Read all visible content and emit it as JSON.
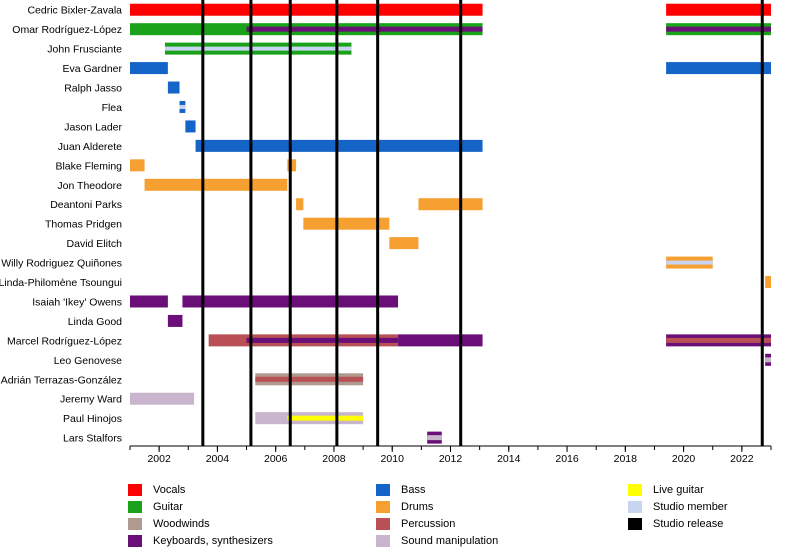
{
  "chart_data": {
    "type": "timeline",
    "title": "",
    "xlabel": "",
    "ylabel": "",
    "xlim": [
      2001.0,
      2023.0
    ],
    "x_ticks": [
      2002,
      2004,
      2006,
      2008,
      2010,
      2012,
      2014,
      2016,
      2018,
      2020,
      2022
    ],
    "roles": {
      "vocals": {
        "label": "Vocals",
        "color": "#ff0000"
      },
      "guitar": {
        "label": "Guitar",
        "color": "#1aa31a"
      },
      "woodwinds": {
        "label": "Woodwinds",
        "color": "#b09a90"
      },
      "keyboards": {
        "label": "Keyboards, synthesizers",
        "color": "#6b0f78"
      },
      "bass": {
        "label": "Bass",
        "color": "#1565c8"
      },
      "drums": {
        "label": "Drums",
        "color": "#f5a030"
      },
      "percussion": {
        "label": "Percussion",
        "color": "#b85055"
      },
      "sound": {
        "label": "Sound manipulation",
        "color": "#c8b4cc"
      },
      "live_guitar": {
        "label": "Live guitar",
        "color": "#ffff00"
      },
      "studio_member": {
        "label": "Studio member",
        "color": "#c8d4f0"
      },
      "studio_release": {
        "label": "Studio release",
        "color": "#000000"
      }
    },
    "members": [
      {
        "name": "Cedric Bixler-Zavala",
        "bars": [
          {
            "role": "vocals",
            "start": 2001.0,
            "end": 2013.1
          },
          {
            "role": "vocals",
            "start": 2019.4,
            "end": 2023.0
          }
        ]
      },
      {
        "name": "Omar Rodríguez-López",
        "bars": [
          {
            "role": "guitar",
            "start": 2001.0,
            "end": 2013.1
          },
          {
            "role": "keyboards",
            "start": 2005.0,
            "end": 2013.1,
            "overlay": true
          },
          {
            "role": "guitar",
            "start": 2019.4,
            "end": 2023.0
          },
          {
            "role": "keyboards",
            "start": 2019.4,
            "end": 2023.0,
            "overlay": true
          }
        ]
      },
      {
        "name": "John Frusciante",
        "bars": [
          {
            "role": "guitar",
            "start": 2002.2,
            "end": 2008.6,
            "studio": true
          }
        ]
      },
      {
        "name": "Eva Gardner",
        "bars": [
          {
            "role": "bass",
            "start": 2001.0,
            "end": 2002.3
          },
          {
            "role": "bass",
            "start": 2019.4,
            "end": 2023.0
          }
        ]
      },
      {
        "name": "Ralph Jasso",
        "bars": [
          {
            "role": "bass",
            "start": 2002.3,
            "end": 2002.7
          }
        ]
      },
      {
        "name": "Flea",
        "bars": [
          {
            "role": "bass",
            "start": 2002.7,
            "end": 2002.9,
            "studio": true
          }
        ]
      },
      {
        "name": "Jason Lader",
        "bars": [
          {
            "role": "bass",
            "start": 2002.9,
            "end": 2003.25
          }
        ]
      },
      {
        "name": "Juan Alderete",
        "bars": [
          {
            "role": "bass",
            "start": 2003.25,
            "end": 2013.1
          }
        ]
      },
      {
        "name": "Blake Fleming",
        "bars": [
          {
            "role": "drums",
            "start": 2001.0,
            "end": 2001.5
          },
          {
            "role": "drums",
            "start": 2006.4,
            "end": 2006.7
          }
        ]
      },
      {
        "name": "Jon Theodore",
        "bars": [
          {
            "role": "drums",
            "start": 2001.5,
            "end": 2006.4
          }
        ]
      },
      {
        "name": "Deantoni Parks",
        "bars": [
          {
            "role": "drums",
            "start": 2006.7,
            "end": 2006.95
          },
          {
            "role": "drums",
            "start": 2010.9,
            "end": 2013.1
          }
        ]
      },
      {
        "name": "Thomas Pridgen",
        "bars": [
          {
            "role": "drums",
            "start": 2006.95,
            "end": 2009.9
          }
        ]
      },
      {
        "name": "David Elitch",
        "bars": [
          {
            "role": "drums",
            "start": 2009.9,
            "end": 2010.9
          }
        ]
      },
      {
        "name": "Willy Rodriguez Quiñones",
        "bars": [
          {
            "role": "drums",
            "start": 2019.4,
            "end": 2021.0,
            "studio": true
          }
        ]
      },
      {
        "name": "Linda-Philomène Tsoungui",
        "bars": [
          {
            "role": "drums",
            "start": 2022.8,
            "end": 2023.0
          }
        ]
      },
      {
        "name": "Isaiah 'Ikey' Owens",
        "bars": [
          {
            "role": "keyboards",
            "start": 2001.0,
            "end": 2002.3
          },
          {
            "role": "keyboards",
            "start": 2002.8,
            "end": 2010.2
          }
        ]
      },
      {
        "name": "Linda Good",
        "bars": [
          {
            "role": "keyboards",
            "start": 2002.3,
            "end": 2002.8
          }
        ]
      },
      {
        "name": "Marcel Rodríguez-López",
        "bars": [
          {
            "role": "percussion",
            "start": 2003.7,
            "end": 2010.2
          },
          {
            "role": "keyboards",
            "start": 2005.0,
            "end": 2010.2,
            "overlay": true
          },
          {
            "role": "keyboards",
            "start": 2010.2,
            "end": 2013.1
          },
          {
            "role": "keyboards",
            "start": 2019.4,
            "end": 2023.0
          },
          {
            "role": "percussion",
            "start": 2019.4,
            "end": 2023.0,
            "overlay": true
          }
        ]
      },
      {
        "name": "Leo Genovese",
        "bars": [
          {
            "role": "keyboards",
            "start": 2022.8,
            "end": 2023.0
          },
          {
            "role": "sound",
            "start": 2022.8,
            "end": 2023.0,
            "overlay": true
          }
        ]
      },
      {
        "name": "Adrián Terrazas-González",
        "bars": [
          {
            "role": "woodwinds",
            "start": 2005.3,
            "end": 2009.0
          },
          {
            "role": "percussion",
            "start": 2005.3,
            "end": 2009.0,
            "overlay": true
          }
        ]
      },
      {
        "name": "Jeremy Ward",
        "bars": [
          {
            "role": "sound",
            "start": 2001.0,
            "end": 2003.2
          }
        ]
      },
      {
        "name": "Paul Hinojos",
        "bars": [
          {
            "role": "sound",
            "start": 2005.3,
            "end": 2009.0
          },
          {
            "role": "live_guitar",
            "start": 2006.4,
            "end": 2009.0,
            "overlay": true
          }
        ]
      },
      {
        "name": "Lars Stalfors",
        "bars": [
          {
            "role": "keyboards",
            "start": 2011.2,
            "end": 2011.7
          },
          {
            "role": "sound",
            "start": 2011.2,
            "end": 2011.7,
            "overlay": true
          }
        ]
      }
    ],
    "studio_releases": [
      2003.5,
      2005.15,
      2006.5,
      2008.1,
      2009.5,
      2012.35,
      2022.7
    ]
  },
  "legend": [
    {
      "label": "Vocals",
      "color": "#ff0000"
    },
    {
      "label": "Guitar",
      "color": "#1aa31a"
    },
    {
      "label": "Woodwinds",
      "color": "#b09a90"
    },
    {
      "label": "Keyboards, synthesizers",
      "color": "#6b0f78"
    },
    {
      "label": "Bass",
      "color": "#1565c8"
    },
    {
      "label": "Drums",
      "color": "#f5a030"
    },
    {
      "label": "Percussion",
      "color": "#b85055"
    },
    {
      "label": "Sound manipulation",
      "color": "#c8b4cc"
    },
    {
      "label": "Live guitar",
      "color": "#ffff00"
    },
    {
      "label": "Studio member",
      "color": "#c8d4f0"
    },
    {
      "label": "Studio release",
      "color": "#000000"
    }
  ]
}
